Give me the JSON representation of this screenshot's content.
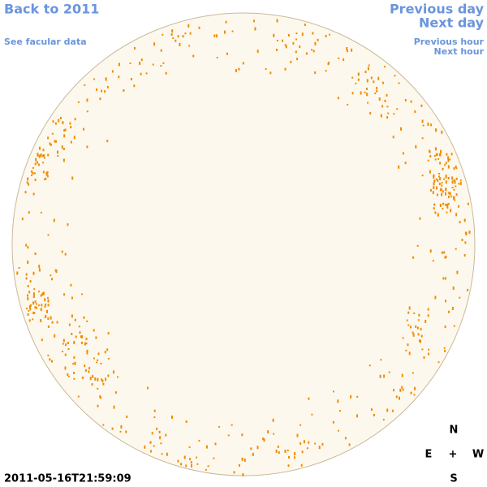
{
  "nav": {
    "back_year": "Back to 2011",
    "facular_data": "See facular data",
    "previous_day": "Previous day",
    "next_day": "Next day",
    "previous_hour": "Previous hour",
    "next_hour": "Next hour"
  },
  "timestamp": "2011-05-16T21:59:09",
  "compass": {
    "north": "N",
    "east": "E",
    "center": "+",
    "west": "W",
    "south": "S"
  }
}
